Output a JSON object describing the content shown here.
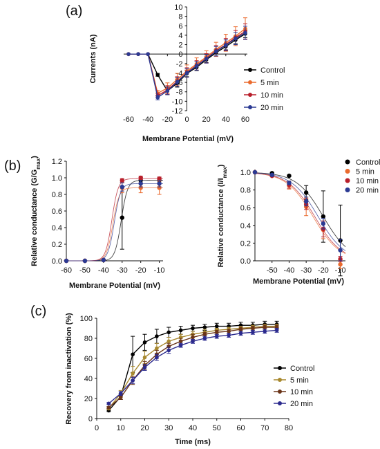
{
  "figure": {
    "panel_labels": [
      "(a)",
      "(b)",
      "(c)"
    ]
  },
  "colors": {
    "Control": "#000000",
    "5 min": "#ea6a2d",
    "10 min": "#b81f2b",
    "20 min": "#2b3a93",
    "c_5 min": "#a8892f",
    "c_10 min": "#6a3418",
    "c_20 min": "#2b2a8e"
  },
  "chart_data": [
    {
      "id": "a",
      "type": "line",
      "title": "",
      "xlabel": "Membrane Potential (mV)",
      "ylabel": "Currents (nA)",
      "xlim": [
        -65,
        60
      ],
      "ylim": [
        -12,
        10
      ],
      "xticks": [
        -60,
        -40,
        -20,
        0,
        20,
        40,
        60
      ],
      "yticks": [
        10,
        8,
        6,
        4,
        2,
        0,
        -2,
        -4,
        -6,
        -8,
        -10,
        -12
      ],
      "x": [
        -60,
        -50,
        -40,
        -30,
        -20,
        -10,
        0,
        10,
        20,
        30,
        40,
        50,
        60
      ],
      "legend_position": "right",
      "series": [
        {
          "name": "Control",
          "values": [
            0,
            0,
            0,
            -4.4,
            -7.8,
            -6.2,
            -4.1,
            -2.8,
            -1.2,
            0.3,
            1.6,
            3.0,
            4.3
          ],
          "err": [
            0,
            0,
            0,
            0.3,
            0.8,
            0.8,
            0.7,
            0.7,
            0.6,
            0.7,
            0.7,
            0.8,
            0.8
          ]
        },
        {
          "name": "5 min",
          "values": [
            0,
            0,
            0,
            -8.3,
            -7.2,
            -5.4,
            -3.6,
            -2.1,
            -0.6,
            1.0,
            2.4,
            3.8,
            5.4
          ],
          "err": [
            0,
            0,
            0,
            0.6,
            1.1,
            1.3,
            1.3,
            1.3,
            1.3,
            1.5,
            1.8,
            2.0,
            2.3
          ]
        },
        {
          "name": "10 min",
          "values": [
            0,
            0,
            0,
            -8.8,
            -7.6,
            -5.8,
            -3.9,
            -2.4,
            -0.9,
            0.7,
            2.0,
            3.5,
            4.8
          ],
          "err": [
            0,
            0,
            0,
            0.5,
            0.9,
            1.0,
            1.0,
            1.0,
            1.0,
            1.1,
            1.3,
            1.5,
            1.6
          ]
        },
        {
          "name": "20 min",
          "values": [
            0,
            0,
            0,
            -9.2,
            -7.8,
            -5.9,
            -4.0,
            -2.5,
            -1.0,
            0.6,
            1.9,
            3.3,
            4.5
          ],
          "err": [
            0,
            0,
            0,
            0.5,
            0.8,
            0.9,
            0.9,
            0.9,
            0.9,
            1.0,
            1.1,
            1.3,
            1.4
          ]
        }
      ]
    },
    {
      "id": "b1",
      "type": "scatter",
      "title": "",
      "xlabel": "Membrane Potential (mV)",
      "ylabel": "Relative conductance (G/G",
      "ylabel_sub": "max",
      "ylabel_end": ")",
      "xlim": [
        -60,
        -8
      ],
      "ylim": [
        0,
        1.2
      ],
      "xticks": [
        -60,
        -50,
        -40,
        -30,
        -20,
        -10
      ],
      "yticks": [
        0.0,
        0.2,
        0.4,
        0.6,
        0.8,
        1.0,
        1.2
      ],
      "x": [
        -60,
        -50,
        -40,
        -30,
        -20,
        -10
      ],
      "series": [
        {
          "name": "Control",
          "values": [
            0,
            0,
            0.01,
            0.52,
            0.97,
            0.97
          ],
          "err": [
            0,
            0,
            0,
            0.38,
            0.03,
            0.03
          ],
          "v_half": -30.5,
          "k": 1.7
        },
        {
          "name": "5 min",
          "values": [
            0,
            0,
            0.01,
            0.88,
            0.88,
            0.88
          ],
          "err": [
            0,
            0,
            0,
            0.06,
            0.06,
            0.08
          ],
          "v_half": -35.0,
          "k": 1.7
        },
        {
          "name": "10 min",
          "values": [
            0,
            0,
            0.01,
            0.97,
            1.0,
            0.99
          ],
          "err": [
            0,
            0,
            0,
            0.02,
            0.02,
            0.02
          ],
          "v_half": -35.5,
          "k": 1.7
        },
        {
          "name": "20 min",
          "values": [
            0,
            0,
            0.01,
            0.89,
            0.93,
            0.93
          ],
          "err": [
            0,
            0,
            0,
            0.05,
            0.04,
            0.04
          ],
          "v_half": -34.2,
          "k": 1.7
        }
      ]
    },
    {
      "id": "b2",
      "type": "scatter",
      "title": "",
      "xlabel": "Membrane Potential (mV)",
      "ylabel": "Relative conductance (I/I",
      "ylabel_sub": "max",
      "ylabel_end": ")",
      "xlim": [
        -60,
        -7
      ],
      "ylim": [
        0,
        1.0
      ],
      "xticks": [
        -50,
        -40,
        -30,
        -20,
        -10
      ],
      "yticks": [
        0.0,
        0.2,
        0.4,
        0.6,
        0.8,
        1.0
      ],
      "x": [
        -60,
        -50,
        -40,
        -30,
        -20,
        -10
      ],
      "legend_position": "top-right",
      "series": [
        {
          "name": "Control",
          "values": [
            1.0,
            0.99,
            0.96,
            0.77,
            0.5,
            0.23
          ],
          "err": [
            0,
            0.01,
            0.01,
            0.08,
            0.29,
            0.4
          ],
          "v_half": -20,
          "k": 7.8
        },
        {
          "name": "5 min",
          "values": [
            1.0,
            0.96,
            0.85,
            0.61,
            0.35,
            -0.04
          ],
          "err": [
            0,
            0.01,
            0.04,
            0.1,
            0.1,
            0.05
          ],
          "v_half": -26,
          "k": 7.8
        },
        {
          "name": "10 min",
          "values": [
            1.0,
            0.96,
            0.86,
            0.64,
            0.36,
            0.02
          ],
          "err": [
            0,
            0.01,
            0.04,
            0.06,
            0.09,
            0.03
          ],
          "v_half": -25,
          "k": 7.8
        },
        {
          "name": "20 min",
          "values": [
            1.0,
            0.97,
            0.88,
            0.67,
            0.42,
            0.12
          ],
          "err": [
            0,
            0.01,
            0.02,
            0.05,
            0.06,
            0.12
          ],
          "v_half": -23,
          "k": 7.8
        }
      ]
    },
    {
      "id": "c",
      "type": "line",
      "title": "",
      "xlabel": "Time (ms)",
      "ylabel": "Recovery from inactivation (%)",
      "xlim": [
        0,
        80
      ],
      "ylim": [
        0,
        100
      ],
      "xticks": [
        0,
        10,
        20,
        30,
        40,
        50,
        60,
        70,
        80
      ],
      "yticks": [
        0,
        20,
        40,
        60,
        80,
        100
      ],
      "x": [
        5,
        10,
        15,
        20,
        25,
        30,
        35,
        40,
        45,
        50,
        55,
        60,
        65,
        70,
        75
      ],
      "legend_position": "right",
      "series": [
        {
          "name": "Control",
          "values": [
            8,
            22,
            64,
            76,
            82,
            86,
            88,
            90,
            91,
            92,
            92,
            93,
            93,
            94,
            94
          ],
          "err": [
            1,
            3,
            18,
            8,
            7,
            5,
            4,
            3,
            3,
            3,
            3,
            3,
            3,
            3,
            3
          ]
        },
        {
          "name": "5 min",
          "values": [
            10,
            25,
            45,
            61,
            70,
            77,
            81,
            84,
            86,
            88,
            89,
            90,
            91,
            92,
            92
          ],
          "err": [
            1,
            3,
            7,
            6,
            5,
            4,
            3,
            3,
            3,
            2,
            2,
            2,
            2,
            2,
            2
          ]
        },
        {
          "name": "10 min",
          "values": [
            11,
            21,
            38,
            53,
            64,
            72,
            77,
            81,
            84,
            86,
            87,
            89,
            90,
            91,
            91
          ],
          "err": [
            1,
            2,
            4,
            4,
            4,
            3,
            3,
            3,
            2,
            2,
            2,
            2,
            2,
            2,
            2
          ]
        },
        {
          "name": "20 min",
          "values": [
            15,
            25,
            38,
            51,
            61,
            68,
            73,
            77,
            80,
            82,
            83,
            85,
            86,
            87,
            88
          ],
          "err": [
            1,
            2,
            3,
            3,
            3,
            3,
            2,
            2,
            2,
            2,
            2,
            2,
            2,
            2,
            2
          ]
        }
      ]
    }
  ]
}
